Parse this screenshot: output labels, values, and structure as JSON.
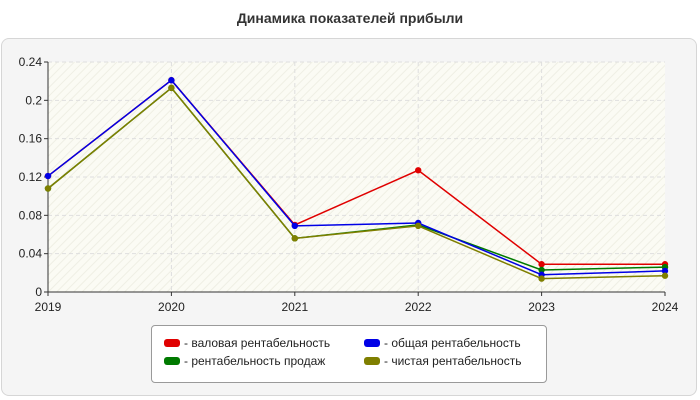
{
  "title": "Динамика показателей прибыли",
  "chart_data": {
    "type": "line",
    "title": "Динамика показателей прибыли",
    "xlabel": "",
    "ylabel": "",
    "categories": [
      "2019",
      "2020",
      "2021",
      "2022",
      "2023",
      "2024"
    ],
    "ylim": [
      0,
      0.24
    ],
    "yticks": [
      "0",
      "0.04",
      "0.08",
      "0.12",
      "0.16",
      "0.2",
      "0.24"
    ],
    "ytick_values": [
      0,
      0.04,
      0.08,
      0.12,
      0.16,
      0.2,
      0.24
    ],
    "grid": true,
    "legend_position": "bottom",
    "series": [
      {
        "name": "- валовая рентабельность",
        "color": "#e00000",
        "values": [
          0.121,
          0.221,
          0.07,
          0.127,
          0.029,
          0.029
        ]
      },
      {
        "name": "- рентабельность продаж",
        "color": "#007a00",
        "values": [
          0.108,
          0.213,
          0.056,
          0.07,
          0.023,
          0.026
        ]
      },
      {
        "name": "- общая рентабельность",
        "color": "#0000e6",
        "values": [
          0.121,
          0.221,
          0.069,
          0.072,
          0.018,
          0.022
        ]
      },
      {
        "name": "- чистая рентабельность",
        "color": "#7f7f00",
        "values": [
          0.108,
          0.213,
          0.056,
          0.069,
          0.014,
          0.017
        ]
      }
    ]
  }
}
